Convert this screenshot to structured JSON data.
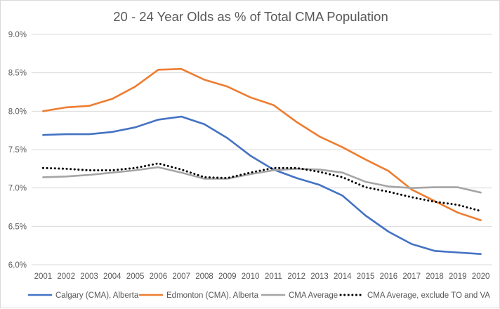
{
  "chart_data": {
    "type": "line",
    "title": "20 - 24 Year Olds as % of Total CMA Population",
    "xlabel": "",
    "ylabel": "",
    "x": [
      "2001",
      "2002",
      "2003",
      "2004",
      "2005",
      "2006",
      "2007",
      "2008",
      "2009",
      "2010",
      "2011",
      "2012",
      "2013",
      "2014",
      "2015",
      "2016",
      "2017",
      "2018",
      "2019",
      "2020"
    ],
    "ylim": [
      6.0,
      9.0
    ],
    "yticks": [
      "6.0%",
      "6.5%",
      "7.0%",
      "7.5%",
      "8.0%",
      "8.5%",
      "9.0%"
    ],
    "ytick_values": [
      6.0,
      6.5,
      7.0,
      7.5,
      8.0,
      8.5,
      9.0
    ],
    "grid": true,
    "legend_position": "bottom",
    "series": [
      {
        "name": "Calgary (CMA), Alberta",
        "color": "#4472C4",
        "style": "solid",
        "values": [
          7.69,
          7.7,
          7.7,
          7.73,
          7.79,
          7.89,
          7.93,
          7.83,
          7.65,
          7.42,
          7.24,
          7.13,
          7.04,
          6.9,
          6.64,
          6.43,
          6.27,
          6.18,
          6.16,
          6.14
        ]
      },
      {
        "name": "Edmonton (CMA), Alberta",
        "color": "#ED7D31",
        "style": "solid",
        "values": [
          8.0,
          8.05,
          8.07,
          8.16,
          8.32,
          8.54,
          8.55,
          8.41,
          8.32,
          8.18,
          8.08,
          7.86,
          7.67,
          7.53,
          7.37,
          7.22,
          6.98,
          6.83,
          6.68,
          6.58
        ]
      },
      {
        "name": "CMA Average",
        "color": "#A5A5A5",
        "style": "solid",
        "values": [
          7.14,
          7.15,
          7.17,
          7.2,
          7.23,
          7.27,
          7.2,
          7.12,
          7.12,
          7.18,
          7.23,
          7.25,
          7.24,
          7.2,
          7.08,
          7.02,
          7.0,
          7.01,
          7.01,
          6.94
        ]
      },
      {
        "name": "CMA Average, exclude TO and VA",
        "color": "#000000",
        "style": "dotted",
        "values": [
          7.26,
          7.25,
          7.23,
          7.23,
          7.26,
          7.32,
          7.24,
          7.14,
          7.13,
          7.2,
          7.26,
          7.26,
          7.21,
          7.14,
          7.01,
          6.95,
          6.88,
          6.82,
          6.78,
          6.7
        ]
      }
    ]
  }
}
